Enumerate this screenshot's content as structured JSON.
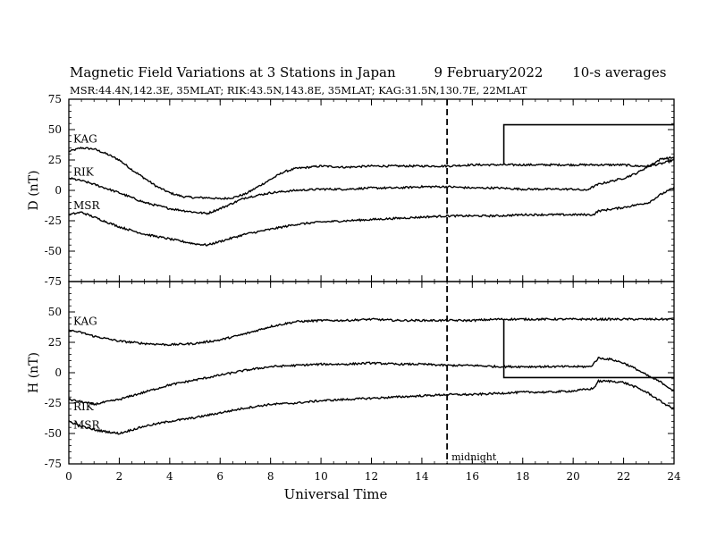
{
  "header": {
    "title": "Magnetic Field Variations at 3 Stations in Japan",
    "date": "9   February2022",
    "averaging": "10-s averages",
    "stations_line": "MSR:44.4N,142.3E, 35MLAT;  RIK:43.5N,143.8E, 35MLAT;  KAG:31.5N,130.7E, 22MLAT"
  },
  "chart_data": [
    {
      "type": "line",
      "panel": "top",
      "ylabel": "D (nT)",
      "xlabel": "",
      "xlim": [
        0,
        24
      ],
      "ylim": [
        -75,
        75
      ],
      "yticks": [
        -75,
        -50,
        -25,
        0,
        25,
        50,
        75
      ],
      "xticks": [
        0,
        2,
        4,
        6,
        8,
        10,
        12,
        14,
        16,
        18,
        20,
        22,
        24
      ],
      "grid": false,
      "series": [
        {
          "name": "KAG",
          "x": [
            0,
            0.5,
            1,
            1.5,
            2,
            2.5,
            3,
            3.5,
            4,
            4.5,
            5,
            5.5,
            6,
            6.5,
            7,
            7.5,
            8,
            8.5,
            9,
            10,
            11,
            12,
            13,
            14,
            15,
            16,
            17,
            17.2,
            18,
            19,
            20,
            20.5,
            21,
            21.5,
            22,
            22.5,
            23,
            23.5,
            24
          ],
          "y": [
            32,
            35,
            34,
            30,
            25,
            17,
            10,
            3,
            -2,
            -5,
            -6,
            -6,
            -7,
            -6,
            -3,
            3,
            9,
            15,
            18,
            20,
            19,
            20,
            20,
            20,
            20,
            21,
            21,
            21,
            21,
            21,
            21,
            21,
            21,
            21,
            21,
            20,
            20,
            22,
            25
          ]
        },
        {
          "name": "RIK",
          "x": [
            0,
            0.5,
            1,
            2,
            3,
            4,
            5,
            5.5,
            6,
            7,
            8,
            9,
            10,
            11,
            12,
            13,
            14,
            15,
            16,
            17,
            18,
            19,
            20,
            20.5,
            21,
            22,
            22.5,
            23,
            23.5,
            24
          ],
          "y": [
            10,
            8,
            5,
            -2,
            -10,
            -15,
            -18,
            -19,
            -15,
            -6,
            -2,
            0,
            1,
            1,
            2,
            2,
            3,
            3,
            2,
            2,
            1,
            1,
            1,
            0,
            5,
            10,
            14,
            20,
            26,
            27
          ]
        },
        {
          "name": "MSR",
          "x": [
            0,
            0.5,
            1,
            2,
            3,
            4,
            5,
            5.5,
            6,
            7,
            8,
            9,
            10,
            11,
            12,
            13,
            14,
            15,
            16,
            17,
            18,
            19,
            20,
            20.8,
            21,
            22,
            22.5,
            23,
            23.5,
            24
          ],
          "y": [
            -20,
            -18,
            -22,
            -30,
            -36,
            -40,
            -44,
            -45,
            -42,
            -36,
            -32,
            -28,
            -26,
            -25,
            -24,
            -23,
            -22,
            -21,
            -21,
            -21,
            -20,
            -20,
            -20,
            -20,
            -17,
            -14,
            -12,
            -10,
            -3,
            2
          ]
        }
      ],
      "annotations": [
        "KAG",
        "RIK",
        "MSR"
      ]
    },
    {
      "type": "line",
      "panel": "bottom",
      "ylabel": "H (nT)",
      "xlabel": "Universal Time",
      "xlim": [
        0,
        24
      ],
      "ylim": [
        -75,
        75
      ],
      "yticks": [
        -75,
        -50,
        -25,
        0,
        25,
        50
      ],
      "xticks": [
        0,
        2,
        4,
        6,
        8,
        10,
        12,
        14,
        16,
        18,
        20,
        22,
        24
      ],
      "xticklabels": [
        "0",
        "2",
        "4",
        "6",
        "8",
        "10",
        "12",
        "14",
        "16",
        "18",
        "20",
        "22",
        "24"
      ],
      "grid": false,
      "series": [
        {
          "name": "KAG",
          "x": [
            0,
            0.5,
            1,
            2,
            3,
            4,
            5,
            6,
            7,
            8,
            9,
            10,
            11,
            12,
            13,
            14,
            15,
            16,
            17,
            17.3,
            18,
            19,
            20,
            20.5,
            21,
            21.5,
            22,
            22.5,
            23,
            23.5,
            24
          ],
          "y": [
            35,
            33,
            30,
            26,
            24,
            23,
            24,
            27,
            32,
            38,
            42,
            43,
            43,
            44,
            43,
            43,
            43,
            43,
            44,
            44,
            44,
            44,
            44,
            44,
            44,
            44,
            44,
            44,
            44,
            44,
            44
          ]
        },
        {
          "name": "RIK",
          "x": [
            0,
            0.5,
            1,
            2,
            3,
            4,
            5,
            6,
            7,
            8,
            9,
            10,
            11,
            12,
            13,
            14,
            15,
            16,
            17,
            18,
            19,
            20,
            20.7,
            21,
            21.5,
            22,
            22.5,
            23,
            23.5,
            24
          ],
          "y": [
            -22,
            -24,
            -26,
            -22,
            -16,
            -10,
            -6,
            -2,
            2,
            5,
            6,
            7,
            7,
            8,
            7,
            7,
            6,
            6,
            5,
            5,
            5,
            5,
            5,
            12,
            11,
            8,
            3,
            -3,
            -8,
            -15
          ]
        },
        {
          "name": "MSR",
          "x": [
            0,
            0.5,
            1,
            2,
            3,
            4,
            5,
            6,
            7,
            8,
            9,
            10,
            11,
            12,
            13,
            14,
            15,
            16,
            17,
            18,
            19,
            20,
            20.8,
            21,
            21.5,
            22,
            22.5,
            23,
            23.5,
            24
          ],
          "y": [
            -40,
            -44,
            -47,
            -50,
            -44,
            -40,
            -37,
            -33,
            -29,
            -26,
            -25,
            -23,
            -22,
            -21,
            -20,
            -19,
            -18,
            -18,
            -17,
            -16,
            -16,
            -15,
            -13,
            -7,
            -7,
            -8,
            -12,
            -17,
            -24,
            -30
          ]
        }
      ],
      "annotations": [
        "KAG",
        "RIK",
        "MSR"
      ]
    }
  ],
  "steps": {
    "top": {
      "x": 17.25,
      "from": 21,
      "to": 54
    },
    "bottom": {
      "x": 17.25,
      "from": 44,
      "to": -4
    }
  },
  "marker": {
    "x": 15,
    "label": "midnight"
  }
}
